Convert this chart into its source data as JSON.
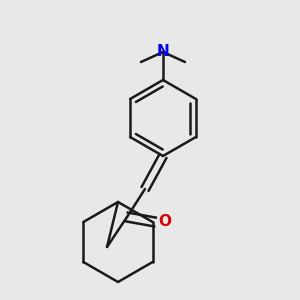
{
  "bg_color": "#e8e8e8",
  "bond_color": "#1a1a1a",
  "N_color": "#0000ee",
  "O_color": "#dd0000",
  "line_width": 1.8,
  "figsize": [
    3.0,
    3.0
  ],
  "dpi": 100
}
